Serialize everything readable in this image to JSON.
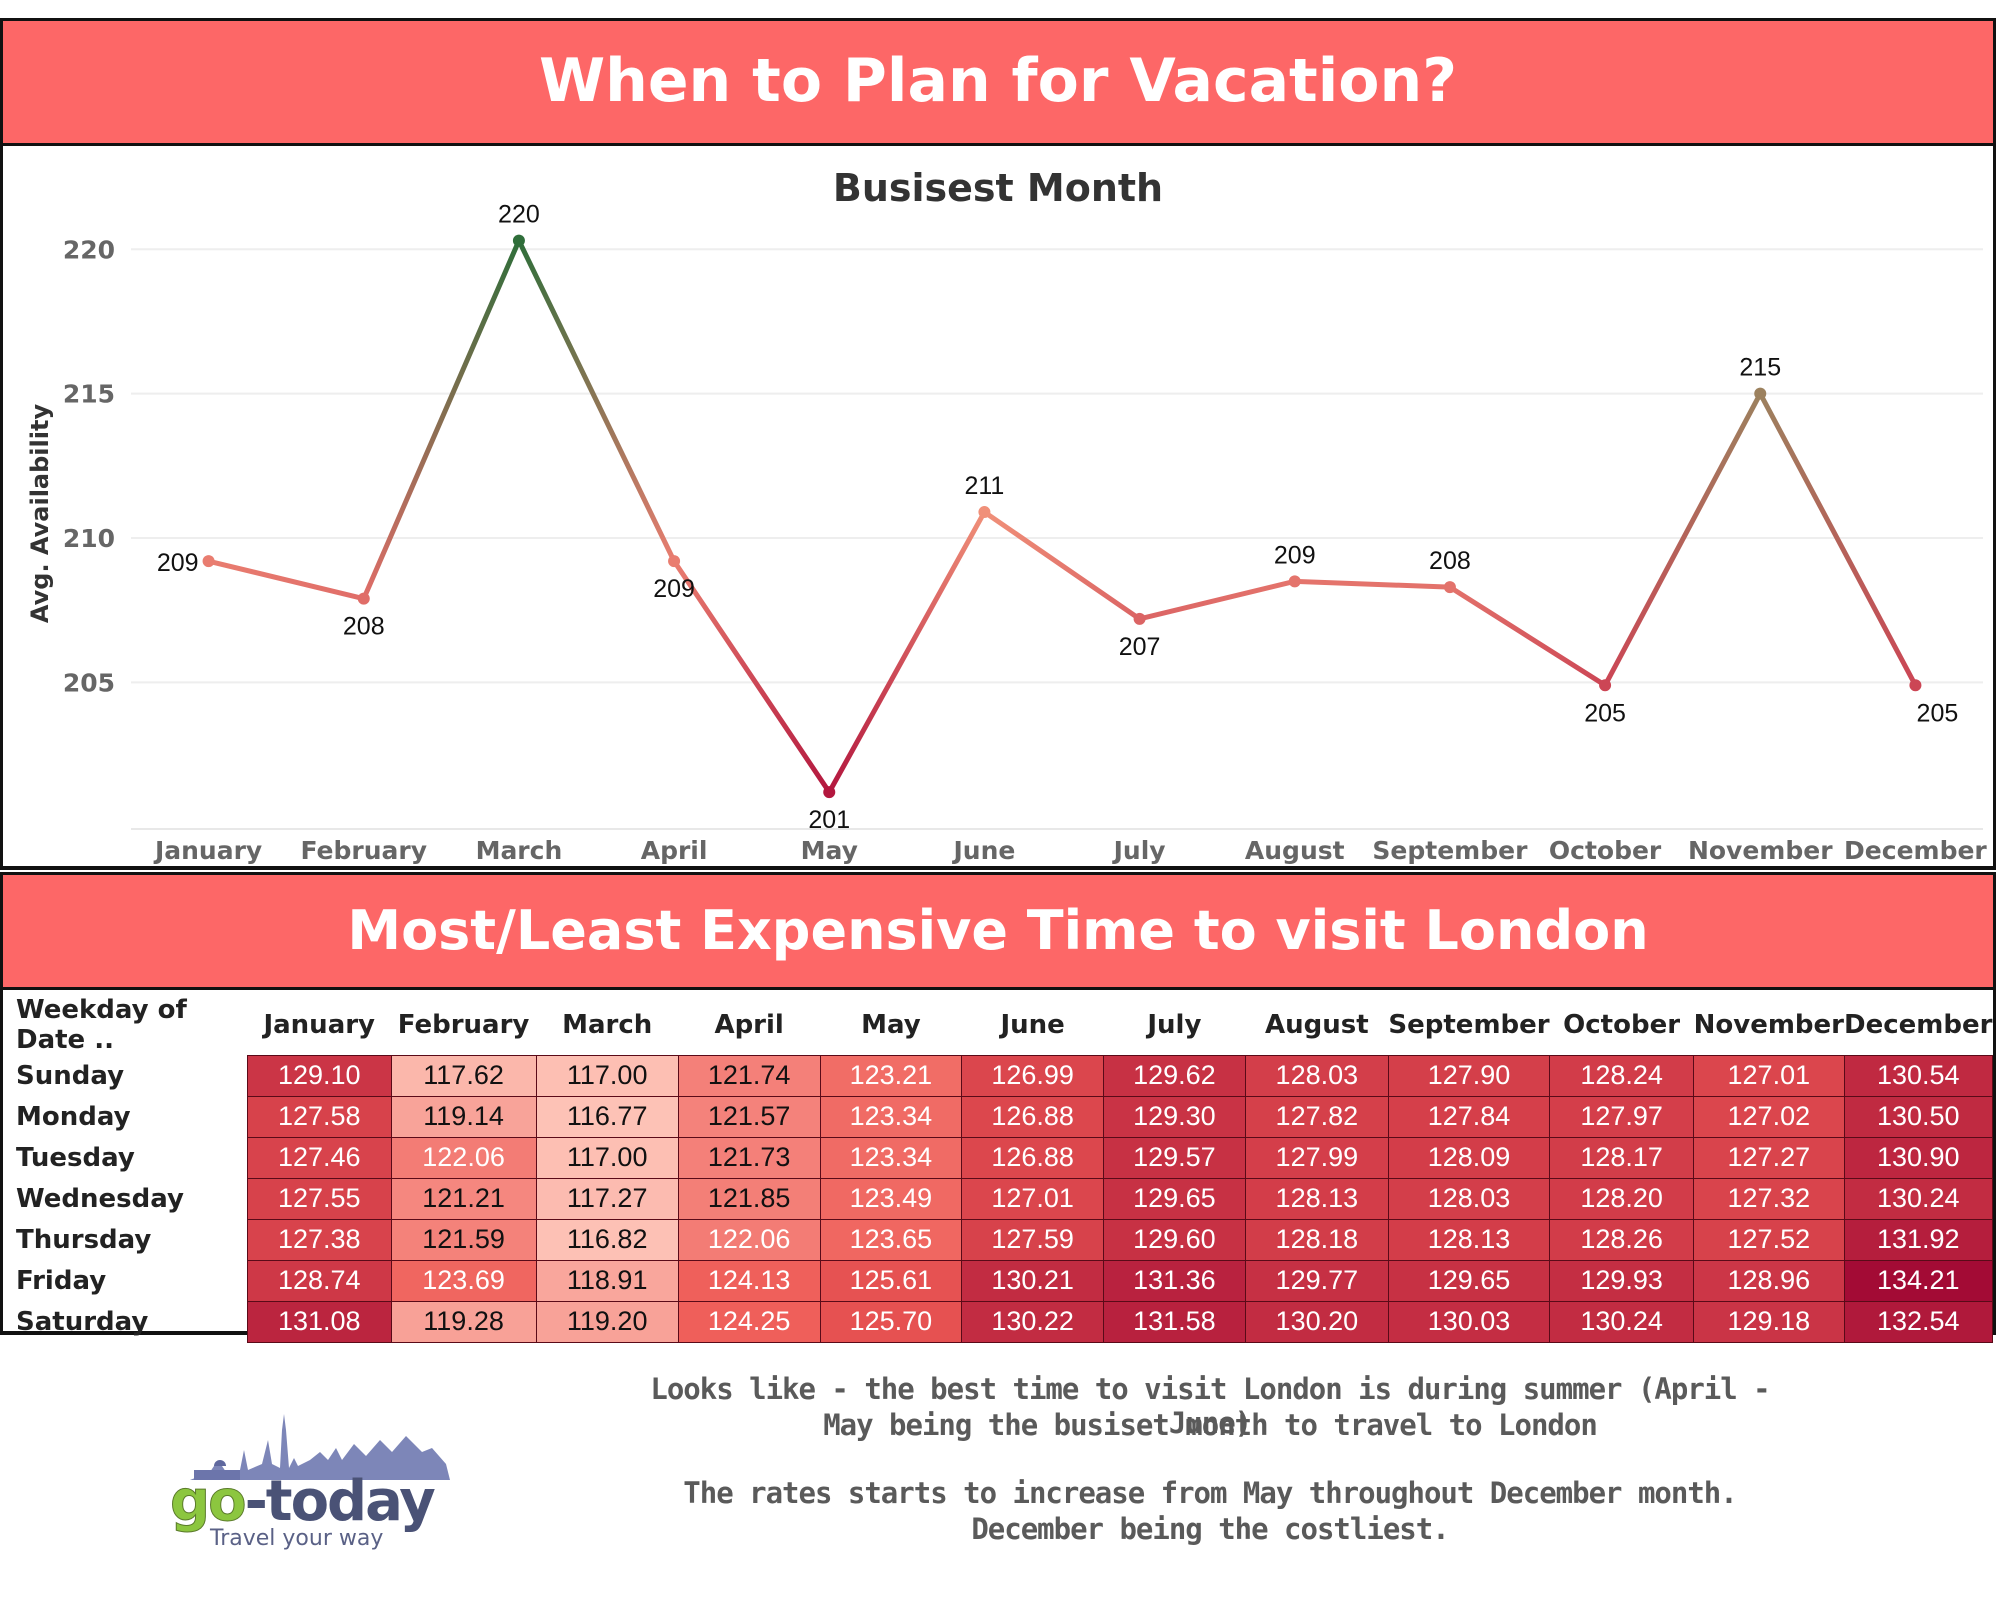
{
  "banner_top": "When to Plan for Vacation?",
  "banner_bottom": "Most/Least Expensive Time to visit London",
  "chart_data": [
    {
      "type": "line",
      "title": "Busisest Month",
      "xlabel": "",
      "ylabel": "Avg. Availability",
      "categories": [
        "January",
        "February",
        "March",
        "April",
        "May",
        "June",
        "July",
        "August",
        "September",
        "October",
        "November",
        "December"
      ],
      "values": [
        209.2,
        207.9,
        220.3,
        209.2,
        201.2,
        210.9,
        207.2,
        208.5,
        208.3,
        204.9,
        215.0,
        204.9
      ],
      "value_labels": [
        "209",
        "208",
        "220",
        "209",
        "201",
        "211",
        "207",
        "209",
        "208",
        "205",
        "215",
        "205"
      ],
      "y_ticks": [
        205,
        210,
        215,
        220
      ],
      "ylim": [
        200.2,
        221.5
      ],
      "grid": true,
      "color_scale": {
        "low": "#b3173e",
        "mid": "#f3917a",
        "high": "#2f6e3a"
      }
    },
    {
      "type": "heatmap",
      "title": "",
      "row_header": "Weekday of Date ..",
      "columns": [
        "January",
        "February",
        "March",
        "April",
        "May",
        "June",
        "July",
        "August",
        "September",
        "October",
        "November",
        "December"
      ],
      "rows": [
        {
          "label": "Sunday",
          "values": [
            "129.10",
            "117.62",
            "117.00",
            "121.74",
            "123.21",
            "126.99",
            "129.62",
            "128.03",
            "127.90",
            "128.24",
            "127.01",
            "130.54"
          ]
        },
        {
          "label": "Monday",
          "values": [
            "127.58",
            "119.14",
            "116.77",
            "121.57",
            "123.34",
            "126.88",
            "129.30",
            "127.82",
            "127.84",
            "127.97",
            "127.02",
            "130.50"
          ]
        },
        {
          "label": "Tuesday",
          "values": [
            "127.46",
            "122.06",
            "117.00",
            "121.73",
            "123.34",
            "126.88",
            "129.57",
            "127.99",
            "128.09",
            "128.17",
            "127.27",
            "130.90"
          ]
        },
        {
          "label": "Wednesday",
          "values": [
            "127.55",
            "121.21",
            "117.27",
            "121.85",
            "123.49",
            "127.01",
            "129.65",
            "128.13",
            "128.03",
            "128.20",
            "127.32",
            "130.24"
          ]
        },
        {
          "label": "Thursday",
          "values": [
            "127.38",
            "121.59",
            "116.82",
            "122.06",
            "123.65",
            "127.59",
            "129.60",
            "128.18",
            "128.13",
            "128.26",
            "127.52",
            "131.92"
          ]
        },
        {
          "label": "Friday",
          "values": [
            "128.74",
            "123.69",
            "118.91",
            "124.13",
            "125.61",
            "130.21",
            "131.36",
            "129.77",
            "129.65",
            "129.93",
            "128.96",
            "134.21"
          ]
        },
        {
          "label": "Saturday",
          "values": [
            "131.08",
            "119.28",
            "119.20",
            "124.25",
            "125.70",
            "130.22",
            "131.58",
            "130.20",
            "130.03",
            "130.24",
            "129.18",
            "132.54"
          ]
        }
      ],
      "color_scale": {
        "low": "#fdc2b6",
        "high": "#a30b35"
      }
    }
  ],
  "logo": {
    "name": "go-today",
    "tagline": "Travel your way"
  },
  "notes": [
    "Looks like - the best time to visit London is during summer (April - June)",
    "May being the busiset month to travel to London",
    "The rates starts to increase from May throughout December month.",
    "December being the costliest."
  ]
}
